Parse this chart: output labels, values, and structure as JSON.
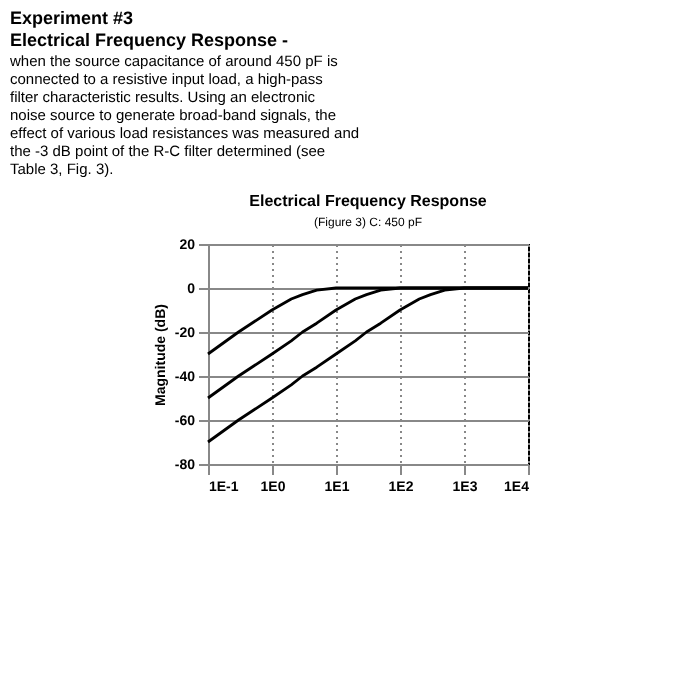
{
  "chart_data": {
    "type": "line",
    "title": "Electrical Frequency Response",
    "subtitle": "(Figure 3)   C: 450 pF",
    "ylabel": "Magnitude (dB)",
    "annotations": [
      "Experiment #3",
      "Electrical Frequency Response -",
      "when the source capacitance of around 450 pF is connected to a resistive input load, a high-pass filter characteristic results. Using an electronic noise source to generate broad-band signals, the effect of various load resistances was measured and the -3 dB point of the R-C filter determined (see Table 3, Fig. 3)."
    ],
    "x": [
      0.1,
      0.3,
      1,
      2,
      3,
      5,
      10,
      20,
      30,
      50,
      100,
      200,
      300,
      500,
      1000,
      3000,
      10000
    ],
    "series": [
      {
        "color": "#000000",
        "values": [
          -30,
          -20,
          -10,
          -5,
          -3,
          -1,
          0,
          0,
          0,
          0,
          0,
          0,
          0,
          0,
          0,
          0,
          0
        ]
      },
      {
        "color": "#000000",
        "values": [
          -50,
          -40,
          -30,
          -24,
          -20,
          -16,
          -10,
          -5,
          -3,
          -1,
          0,
          0,
          0,
          0,
          0,
          0,
          0
        ]
      },
      {
        "color": "#000000",
        "values": [
          -70,
          -60,
          -50,
          -44,
          -40,
          -36,
          -30,
          -24,
          -20,
          -16,
          -10,
          -5,
          -3,
          -1,
          0,
          0,
          0
        ]
      }
    ],
    "log": "x",
    "xlim": [
      0.1,
      10000
    ],
    "xticks": [
      {
        "value": 0.1,
        "label": "1E-1"
      },
      {
        "value": 1,
        "label": "1E0"
      },
      {
        "value": 10,
        "label": "1E1"
      },
      {
        "value": 100,
        "label": "1E2"
      },
      {
        "value": 1000,
        "label": "1E3"
      },
      {
        "value": 10000,
        "label": "1E4"
      }
    ],
    "ylim": [
      -80,
      20
    ],
    "yticks": [
      -80,
      -60,
      -40,
      -20,
      0,
      20
    ],
    "grid": true,
    "marker": "none",
    "line_style": "solid",
    "legend": false
  }
}
